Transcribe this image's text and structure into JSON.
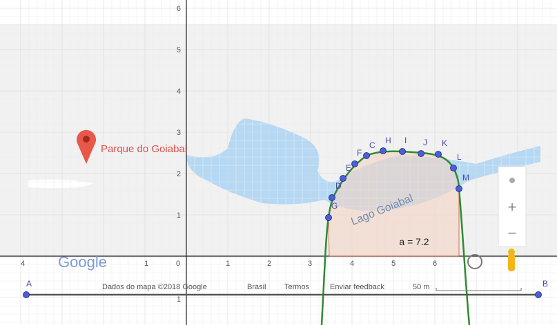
{
  "map": {
    "place": "Parque do Goiabal",
    "lake": "Lago Goiabal",
    "logo": "Google",
    "footer": [
      "Dados do mapa ©2018 Google",
      "Brasil",
      "Termos",
      "Enviar feedback",
      "50 m"
    ],
    "zoom_in": "+",
    "zoom_out": "−"
  },
  "graph": {
    "area_label": "a = 7.2",
    "x_tick_labels": [
      "4",
      "1",
      "0",
      "1",
      "2",
      "3",
      "4",
      "5",
      "6"
    ],
    "y_tick_labels": [
      "6",
      "5",
      "4",
      "3",
      "2",
      "1",
      "1"
    ],
    "points": [
      "A",
      "B",
      "G",
      "D",
      "E",
      "F",
      "C",
      "H",
      "I",
      "J",
      "K",
      "L",
      "M"
    ]
  }
}
